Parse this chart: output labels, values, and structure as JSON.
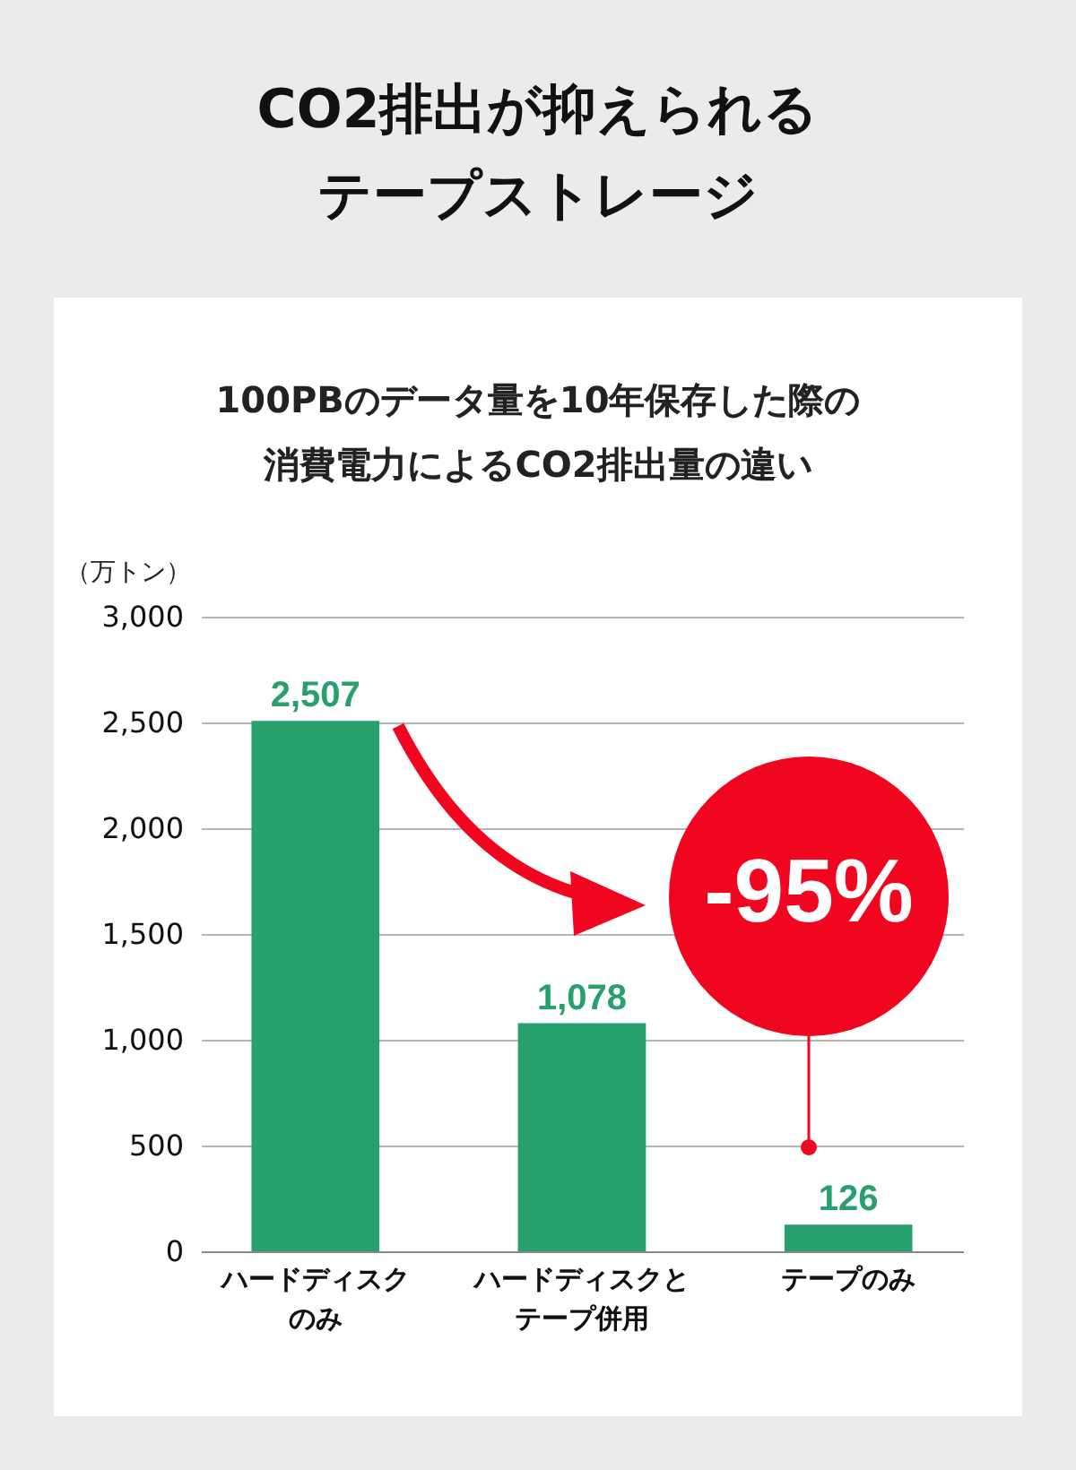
{
  "chart_data": {
    "type": "bar",
    "title": "CO2排出が抑えられるテープストレージ",
    "subtitle": "100PBのデータ量を10年保存した際の消費電力によるCO2排出量の違い",
    "ylabel": "（万トン）",
    "categories": [
      "ハードディスクのみ",
      "ハードディスクとテープ併用",
      "テープのみ"
    ],
    "values": [
      2507,
      1078,
      126
    ],
    "color": "#27a06e",
    "value_labels": [
      "2,507",
      "1,078",
      "126"
    ],
    "ylim": [
      0,
      3000
    ],
    "yticks": [
      0,
      {
        "value": 500,
        "label": "500"
      },
      {
        "value": 1000,
        "label": "1,000"
      },
      {
        "value": 1500,
        "label": "1,500"
      },
      {
        "value": 2000,
        "label": "2,000"
      },
      {
        "value": 2500,
        "label": "2,500"
      },
      {
        "value": 3000,
        "label": "3,000"
      }
    ],
    "grid": "y",
    "annotations": [
      "-95%"
    ]
  }
}
